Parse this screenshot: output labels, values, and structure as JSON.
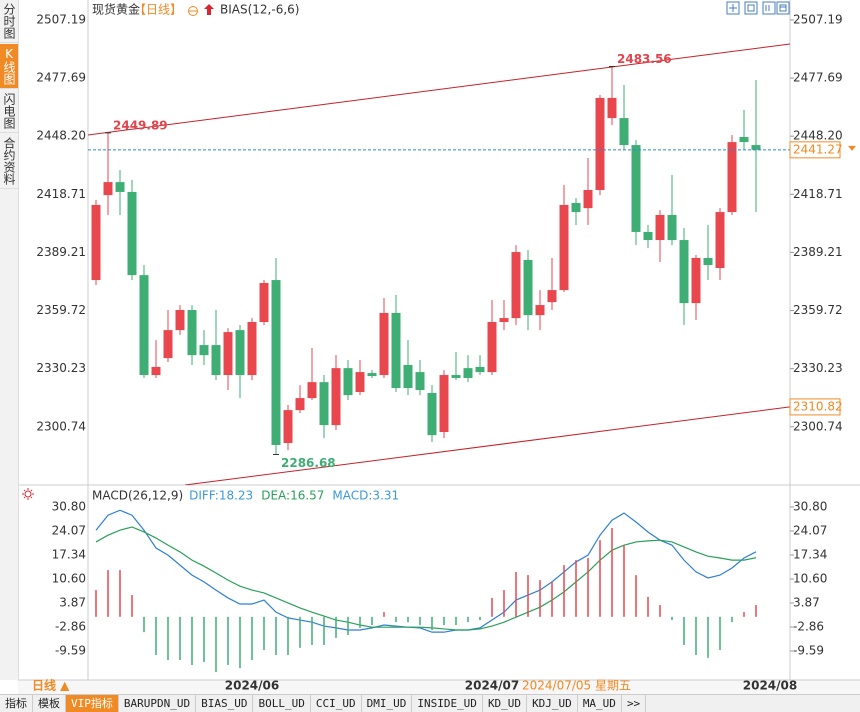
{
  "side_tabs": [
    "分时图",
    "K线图",
    "闪电图",
    "合约资料"
  ],
  "active_tab": 1,
  "chart_data": [
    {
      "type": "candlestick",
      "title": "现货黄金",
      "period": "【日线】",
      "indicator": "BIAS(12,-6,6)",
      "categories": [
        null,
        null,
        null,
        null,
        null,
        null,
        null,
        null,
        null,
        null,
        null,
        null,
        null,
        "2024/06",
        null,
        null,
        null,
        null,
        null,
        null,
        null,
        null,
        null,
        null,
        null,
        null,
        null,
        null,
        null,
        null,
        null,
        null,
        null,
        "2024/07",
        null,
        null,
        null,
        null,
        null,
        null,
        null,
        null,
        null,
        null,
        null,
        null,
        null,
        null,
        null,
        null,
        null,
        null,
        null,
        null,
        null,
        null
      ],
      "edge_label": "2024/08",
      "cursor_label": "2024/07/05 星期五",
      "period_switch": "日线 ▲",
      "open": [
        2375.2,
        2418.3,
        2424.9,
        2419.9,
        2377.7,
        2327.0,
        2335.6,
        2349.8,
        2360.0,
        2342.2,
        2342.2,
        2327.0,
        2349.8,
        2327.0,
        2353.9,
        2375.2,
        2292.5,
        2309.2,
        2315.3,
        2323.4,
        2301.6,
        2330.5,
        2318.4,
        2328.0,
        2327.0,
        2358.5,
        2332.1,
        2328.5,
        2317.9,
        2298.1,
        2327.0,
        2330.5,
        2331.1,
        2328.5,
        2353.9,
        2355.9,
        2385.4,
        2357.4,
        2364.0,
        2370.1,
        2414.3,
        2411.7,
        2420.9,
        2457.4,
        2457.4,
        2443.7,
        2399.6,
        2395.5,
        2408.2,
        2395.5,
        2363.5,
        2386.4,
        2381.3,
        2409.7,
        2447.8,
        2443.7
      ],
      "high": [
        2415.8,
        2449.89,
        2431.0,
        2426.0,
        2382.8,
        2344.7,
        2360.0,
        2362.5,
        2362.5,
        2349.8,
        2360.0,
        2350.8,
        2352.4,
        2355.9,
        2375.2,
        2386.4,
        2311.8,
        2321.9,
        2340.7,
        2327.0,
        2337.1,
        2334.6,
        2334.6,
        2329.5,
        2366.1,
        2367.6,
        2344.7,
        2334.6,
        2321.9,
        2329.5,
        2338.7,
        2337.1,
        2337.1,
        2365.1,
        2365.1,
        2392.9,
        2390.4,
        2370.1,
        2386.4,
        2423.4,
        2416.8,
        2437.1,
        2469.1,
        2483.56,
        2474.2,
        2446.2,
        2403.1,
        2410.7,
        2428.5,
        2401.6,
        2387.9,
        2403.1,
        2411.7,
        2448.8,
        2461.5,
        2476.7
      ],
      "low": [
        2372.7,
        2408.2,
        2408.2,
        2375.2,
        2325.5,
        2325.5,
        2333.6,
        2347.3,
        2332.1,
        2332.1,
        2324.4,
        2319.4,
        2315.3,
        2324.4,
        2352.4,
        2286.68,
        2288.9,
        2307.7,
        2314.3,
        2295.0,
        2299.1,
        2314.3,
        2316.8,
        2325.5,
        2325.5,
        2318.4,
        2316.8,
        2316.8,
        2293.0,
        2295.0,
        2324.4,
        2323.4,
        2327.0,
        2327.0,
        2349.8,
        2352.4,
        2349.8,
        2349.8,
        2360.0,
        2369.1,
        2403.1,
        2403.1,
        2418.3,
        2453.9,
        2441.2,
        2392.9,
        2391.4,
        2384.3,
        2392.9,
        2352.4,
        2354.9,
        2375.2,
        2375.2,
        2408.2,
        2441.2,
        2409.7
      ],
      "close": [
        2413.3,
        2424.9,
        2419.9,
        2377.7,
        2327.0,
        2331.1,
        2349.8,
        2360.0,
        2337.1,
        2337.1,
        2327.0,
        2348.8,
        2327.0,
        2353.9,
        2373.7,
        2291.5,
        2309.2,
        2315.3,
        2323.4,
        2301.6,
        2330.5,
        2316.8,
        2328.5,
        2326.5,
        2358.5,
        2320.4,
        2320.4,
        2319.4,
        2296.5,
        2327.0,
        2325.5,
        2325.5,
        2328.5,
        2353.9,
        2355.9,
        2389.4,
        2357.4,
        2362.5,
        2370.1,
        2413.3,
        2409.7,
        2420.9,
        2467.6,
        2467.6,
        2443.7,
        2399.6,
        2395.5,
        2408.2,
        2395.5,
        2363.5,
        2386.4,
        2382.8,
        2409.7,
        2445.2,
        2445.2,
        2441.27
      ],
      "up_color": "#e8474e",
      "down_color": "#3fae74",
      "ylim": [
        2271.2,
        2517.3
      ],
      "yticks": [
        2507.19,
        2477.69,
        {
          "value": 2448.2,
          "label": "2448.20"
        },
        2418.71,
        2389.21,
        2359.72,
        2330.23,
        2300.74
      ],
      "last_price": 2441.27,
      "last_price_color": "#f08a24",
      "last_line_color": "#2f8ac8",
      "annotations": [
        {
          "index": 1,
          "value": 2449.89,
          "color": "#e0454d"
        },
        {
          "index": 43,
          "value": 2483.56,
          "color": "#e0454d"
        },
        {
          "index": 15,
          "value": 2286.68,
          "color": "#3fae74"
        }
      ],
      "trendlines": [
        {
          "x": [
            -0.67,
            57.83
          ],
          "y": [
            2448.8,
            2495.0
          ],
          "color": "#c8202a",
          "end_tag": false
        },
        {
          "x": [
            7.42,
            57.83
          ],
          "y": [
            2271.2,
            2310.82
          ],
          "color": "#c8202a",
          "end_tag": true
        }
      ]
    },
    {
      "type": "macd",
      "title": "MACD(26,12,9)",
      "ylim": [
        -17.72,
        34.17
      ],
      "yticks": [
        {
          "value": 30.8,
          "label": "30.80"
        },
        24.07,
        17.34,
        {
          "value": 10.6,
          "label": "10.60"
        },
        3.87,
        -2.86,
        -9.59
      ],
      "positive_color": "#e8474e",
      "negative_color": "#3fae74",
      "series": [
        {
          "name": "DIFF:18.23",
          "color": "#2f7fd6",
          "legend_color": "#3a9ad8",
          "kind": "line",
          "values": [
            24.3,
            28.5,
            29.9,
            28.5,
            24.3,
            19.3,
            17.3,
            14.5,
            11.7,
            9.8,
            7.5,
            5.3,
            3.6,
            3.6,
            4.7,
            1.3,
            -0.3,
            -0.9,
            -1.5,
            -2.6,
            -3.1,
            -3.7,
            -3.7,
            -3.1,
            -2.3,
            -2.6,
            -2.9,
            -3.1,
            -4.3,
            -4.3,
            -3.7,
            -3.7,
            -3.1,
            -0.9,
            1.3,
            4.7,
            6.1,
            7.5,
            9.8,
            12.6,
            15.4,
            17.3,
            22.9,
            27.1,
            29.1,
            26.6,
            23.8,
            21.5,
            20.1,
            15.9,
            12.6,
            10.9,
            11.7,
            13.7,
            16.5,
            18.23
          ]
        },
        {
          "name": "DEA:16.57",
          "color": "#2aa05a",
          "legend_color": "#2aa05a",
          "kind": "line",
          "values": [
            21.0,
            22.9,
            24.3,
            25.2,
            23.8,
            22.1,
            20.1,
            18.2,
            15.9,
            14.2,
            12.3,
            10.3,
            8.6,
            7.5,
            6.7,
            5.3,
            3.9,
            2.5,
            1.3,
            0.2,
            -0.9,
            -1.5,
            -2.3,
            -2.9,
            -2.9,
            -2.9,
            -2.9,
            -2.9,
            -3.1,
            -3.4,
            -3.7,
            -3.7,
            -3.4,
            -2.6,
            -1.5,
            -0.1,
            1.3,
            2.7,
            4.7,
            7.0,
            9.8,
            12.6,
            15.9,
            18.7,
            20.1,
            21.0,
            21.3,
            21.5,
            21.0,
            19.6,
            18.2,
            17.0,
            16.5,
            15.9,
            15.9,
            16.57
          ]
        },
        {
          "name": "MACD:3.31",
          "color": "#3a9ad8",
          "legend_color": "#3a9ad8",
          "kind": "histogram",
          "values": [
            7.5,
            13.1,
            13.1,
            6.1,
            -4.3,
            -10.7,
            -12.1,
            -12.1,
            -13.5,
            -12.7,
            -15.5,
            -13.5,
            -14.4,
            -12.1,
            -9.3,
            -10.7,
            -10.7,
            -8.7,
            -7.9,
            -7.9,
            -5.9,
            -5.1,
            -3.1,
            -2.3,
            1.3,
            -1.5,
            -1.5,
            -2.3,
            -3.7,
            -2.3,
            -2.3,
            -1.5,
            -0.9,
            5.3,
            7.5,
            12.6,
            11.7,
            10.3,
            9.8,
            14.5,
            15.9,
            16.5,
            21.5,
            24.9,
            20.1,
            11.7,
            5.6,
            3.3,
            -0.9,
            -7.9,
            -10.7,
            -11.5,
            -9.3,
            -1.5,
            1.3,
            3.31
          ]
        }
      ]
    }
  ],
  "toolbar": {
    "items": [
      "指标",
      "模板",
      "VIP指标",
      "BARUPDN_UD",
      "BIAS_UD",
      "BOLL_UD",
      "CCI_UD",
      "DMI_UD",
      "INSIDE_UD",
      "KD_UD",
      "KDJ_UD",
      "MA_UD",
      ">>"
    ],
    "active": 2
  }
}
